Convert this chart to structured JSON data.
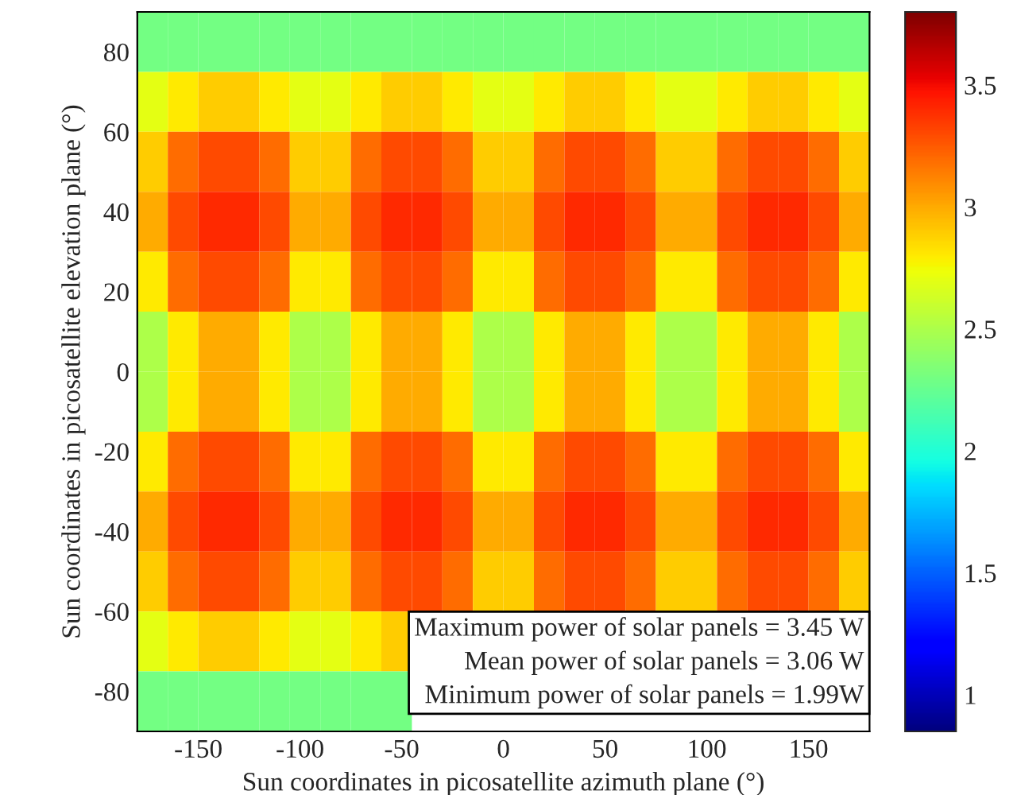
{
  "chart_data": {
    "type": "heatmap",
    "xlabel": "Sun coordinates in picosatellite azimuth plane (°)",
    "ylabel": "Sun coordinates in picosatellite elevation plane (°)",
    "x": [
      -172.5,
      -157.5,
      -142.5,
      -127.5,
      -112.5,
      -97.5,
      -82.5,
      -67.5,
      -52.5,
      -37.5,
      -22.5,
      -7.5,
      7.5,
      22.5,
      37.5,
      52.5,
      67.5,
      82.5,
      97.5,
      112.5,
      127.5,
      142.5,
      157.5,
      172.5
    ],
    "y": [
      82.5,
      67.5,
      52.5,
      37.5,
      22.5,
      7.5,
      -7.5,
      -22.5,
      -37.5,
      -52.5,
      -67.5,
      -82.5
    ],
    "cells": [
      [
        2.3,
        2.3,
        2.3,
        2.3,
        2.3,
        2.3,
        2.3,
        2.3,
        2.3,
        2.3,
        2.3,
        2.3,
        2.3,
        2.3,
        2.3,
        2.3,
        2.3,
        2.3,
        2.3,
        2.3,
        2.3,
        2.3,
        2.3,
        2.3
      ],
      [
        2.7,
        2.8,
        2.9,
        2.9,
        2.8,
        2.7,
        2.7,
        2.8,
        2.9,
        2.9,
        2.8,
        2.7,
        2.7,
        2.8,
        2.9,
        2.9,
        2.8,
        2.7,
        2.7,
        2.8,
        2.9,
        2.9,
        2.8,
        2.7
      ],
      [
        2.9,
        3.2,
        3.3,
        3.3,
        3.2,
        2.9,
        2.9,
        3.2,
        3.3,
        3.3,
        3.2,
        2.9,
        2.9,
        3.2,
        3.3,
        3.3,
        3.2,
        2.9,
        2.9,
        3.2,
        3.3,
        3.3,
        3.2,
        2.9
      ],
      [
        3.0,
        3.3,
        3.4,
        3.4,
        3.3,
        3.0,
        3.0,
        3.3,
        3.4,
        3.4,
        3.3,
        3.0,
        3.0,
        3.3,
        3.4,
        3.4,
        3.3,
        3.0,
        3.0,
        3.3,
        3.4,
        3.4,
        3.3,
        3.0
      ],
      [
        2.8,
        3.2,
        3.3,
        3.3,
        3.2,
        2.8,
        2.8,
        3.2,
        3.3,
        3.3,
        3.2,
        2.8,
        2.8,
        3.2,
        3.3,
        3.3,
        3.2,
        2.8,
        2.8,
        3.2,
        3.3,
        3.3,
        3.2,
        2.8
      ],
      [
        2.5,
        2.8,
        3.0,
        3.0,
        2.8,
        2.5,
        2.5,
        2.8,
        3.0,
        3.0,
        2.8,
        2.5,
        2.5,
        2.8,
        3.0,
        3.0,
        2.8,
        2.5,
        2.5,
        2.8,
        3.0,
        3.0,
        2.8,
        2.5
      ],
      [
        2.5,
        2.8,
        3.0,
        3.0,
        2.8,
        2.5,
        2.5,
        2.8,
        3.0,
        3.0,
        2.8,
        2.5,
        2.5,
        2.8,
        3.0,
        3.0,
        2.8,
        2.5,
        2.5,
        2.8,
        3.0,
        3.0,
        2.8,
        2.5
      ],
      [
        2.8,
        3.2,
        3.3,
        3.3,
        3.2,
        2.8,
        2.8,
        3.2,
        3.3,
        3.3,
        3.2,
        2.8,
        2.8,
        3.2,
        3.3,
        3.3,
        3.2,
        2.8,
        2.8,
        3.2,
        3.3,
        3.3,
        3.2,
        2.8
      ],
      [
        3.0,
        3.3,
        3.4,
        3.4,
        3.3,
        3.0,
        3.0,
        3.3,
        3.4,
        3.4,
        3.3,
        3.0,
        3.0,
        3.3,
        3.4,
        3.4,
        3.3,
        3.0,
        3.0,
        3.3,
        3.4,
        3.4,
        3.3,
        3.0
      ],
      [
        2.9,
        3.2,
        3.3,
        3.3,
        3.2,
        2.9,
        2.9,
        3.2,
        3.3,
        3.3,
        3.2,
        2.9,
        2.9,
        3.2,
        3.3,
        3.3,
        3.2,
        2.9,
        2.9,
        3.2,
        3.3,
        3.3,
        3.2,
        2.9
      ],
      [
        2.7,
        2.8,
        2.9,
        2.9,
        2.8,
        2.7,
        2.7,
        2.8,
        2.9,
        null,
        null,
        null,
        null,
        null,
        null,
        null,
        null,
        null,
        null,
        null,
        null,
        null,
        null,
        null
      ],
      [
        2.3,
        2.3,
        2.3,
        2.3,
        2.3,
        2.3,
        2.3,
        2.3,
        2.3,
        null,
        null,
        null,
        null,
        null,
        null,
        null,
        null,
        null,
        null,
        null,
        null,
        null,
        null,
        null
      ]
    ],
    "xlim": [
      -180,
      180
    ],
    "xticks": [
      -150,
      -100,
      -50,
      0,
      50,
      100,
      150
    ],
    "ylim": [
      -90,
      90
    ],
    "yticks": [
      -80,
      -60,
      -40,
      -20,
      0,
      20,
      40,
      60,
      80
    ],
    "clim": [
      0.85,
      3.8
    ],
    "cticks": [
      1,
      1.5,
      2,
      2.5,
      3,
      3.5
    ],
    "annotations": [
      "Maximum power of solar panels = 3.45 W",
      "Mean power of solar panels = 3.06 W",
      "Minimum power of solar panels = 1.99W"
    ]
  }
}
